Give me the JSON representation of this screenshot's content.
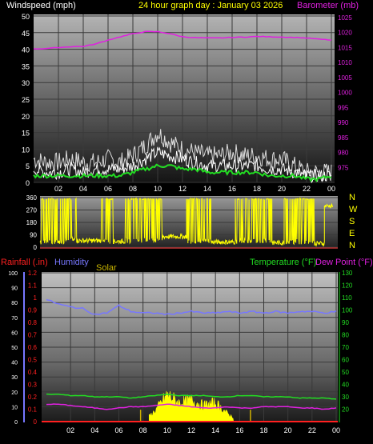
{
  "header": {
    "left_title": "Windspeed (mph)",
    "center_title": "24 hour graph day : January 03 2026",
    "right_title": "Barometer (mb)"
  },
  "colors": {
    "windspeed": "#ffffff",
    "gust": "#d0d0d0",
    "wind_avg": "#22dd22",
    "barometer": "#e020e0",
    "direction": "#ffff00",
    "rainfall": "#ff2020",
    "humidity": "#7777ff",
    "solar": "#ffff00",
    "temperature": "#22dd22",
    "dewpoint": "#e020e0"
  },
  "chart_data": [
    {
      "type": "line",
      "name": "wind-barometer",
      "x_ticks": [
        "02",
        "04",
        "06",
        "08",
        "10",
        "12",
        "14",
        "16",
        "18",
        "20",
        "22",
        "00"
      ],
      "left_axis": {
        "label": "Windspeed (mph)",
        "ylim": [
          0,
          50
        ],
        "ticks": [
          0,
          5,
          10,
          15,
          20,
          25,
          30,
          35,
          40,
          45,
          50
        ]
      },
      "right_axis": {
        "label": "Barometer (mb)",
        "ylim": [
          970,
          1025
        ],
        "ticks": [
          975,
          980,
          985,
          990,
          995,
          1000,
          1005,
          1010,
          1015,
          1020,
          1025
        ]
      },
      "hours": [
        0,
        1,
        2,
        3,
        4,
        5,
        6,
        7,
        8,
        9,
        10,
        11,
        12,
        13,
        14,
        15,
        16,
        17,
        18,
        19,
        20,
        21,
        22,
        23,
        24
      ],
      "gust": [
        7,
        6,
        6,
        7,
        6,
        6,
        7,
        6,
        8,
        11,
        15,
        12,
        10,
        9,
        8,
        8,
        9,
        8,
        8,
        7,
        7,
        5,
        3,
        3,
        3
      ],
      "windspeed": [
        4,
        3,
        3,
        4,
        3,
        4,
        4,
        4,
        5,
        7,
        9,
        8,
        7,
        6,
        5,
        5,
        5,
        5,
        5,
        4,
        4,
        3,
        2,
        2,
        2
      ],
      "wind_avg": [
        2,
        2,
        2,
        2,
        2,
        2,
        2,
        2,
        3,
        4,
        5,
        5,
        4,
        4,
        3,
        3,
        3,
        3,
        3,
        2,
        2,
        2,
        1,
        1,
        2
      ],
      "barometer": [
        1014.5,
        1014.7,
        1015.0,
        1015.3,
        1015.4,
        1016.2,
        1017.5,
        1018.6,
        1019.6,
        1020.3,
        1020.3,
        1019.6,
        1018.6,
        1018.3,
        1018.2,
        1018.2,
        1018.4,
        1018.5,
        1018.7,
        1018.6,
        1018.5,
        1018.4,
        1018.2,
        1017.8,
        1017.5
      ]
    },
    {
      "type": "line",
      "name": "wind-direction",
      "ylim": [
        0,
        360
      ],
      "ticks": [
        0,
        90,
        180,
        270,
        360
      ],
      "right_labels": [
        "N",
        "W",
        "S",
        "E",
        "N"
      ],
      "segments": [
        {
          "from": 0,
          "to": 2,
          "state": "switch",
          "base": 20
        },
        {
          "from": 2,
          "to": 3,
          "state": "switch",
          "base": 40
        },
        {
          "from": 3,
          "to": 5,
          "state": "low",
          "base": 30
        },
        {
          "from": 5,
          "to": 6,
          "state": "switch",
          "base": 20
        },
        {
          "from": 6,
          "to": 7,
          "state": "low",
          "base": 25
        },
        {
          "from": 7,
          "to": 10,
          "state": "switch",
          "base": 30
        },
        {
          "from": 10,
          "to": 12,
          "state": "low",
          "base": 60
        },
        {
          "from": 12,
          "to": 14,
          "state": "switch",
          "base": 25
        },
        {
          "from": 14,
          "to": 16,
          "state": "low",
          "base": 20
        },
        {
          "from": 16,
          "to": 19,
          "state": "switch",
          "base": 25
        },
        {
          "from": 19,
          "to": 20,
          "state": "low",
          "base": 15
        },
        {
          "from": 20,
          "to": 22.5,
          "state": "switch",
          "base": 20
        },
        {
          "from": 22.5,
          "to": 23.3,
          "state": "low",
          "base": 10
        },
        {
          "from": 23.3,
          "to": 24,
          "state": "high",
          "base": 300
        }
      ]
    },
    {
      "type": "line",
      "name": "rain-humidity-temperature",
      "labels": {
        "rainfall": "Rainfall (.in)",
        "humidity": "Humidity",
        "solar": "Solar",
        "temperature": "Temperature (°F)",
        "dewpoint": "Dew Point (°F)"
      },
      "x_ticks": [
        "02",
        "04",
        "06",
        "08",
        "10",
        "12",
        "14",
        "16",
        "18",
        "20",
        "22",
        "00"
      ],
      "humidity_axis": {
        "ylim": [
          0,
          100
        ],
        "ticks": [
          0,
          10,
          20,
          30,
          40,
          50,
          60,
          70,
          80,
          90,
          100
        ]
      },
      "rain_axis": {
        "ylim": [
          0,
          1.2
        ],
        "ticks": [
          0,
          0.1,
          0.2,
          0.3,
          0.4,
          0.5,
          0.6,
          0.7,
          0.8,
          0.9,
          1,
          1.1,
          1.2
        ],
        "tick_labels": [
          "0",
          "0.1",
          "0.2",
          "0.3",
          "0.4",
          "0.5",
          "0.6",
          "0.7",
          "0.8",
          "0.9",
          "1",
          "1.1",
          "1.2"
        ]
      },
      "temp_axis": {
        "ylim": [
          10,
          130
        ],
        "ticks": [
          20,
          30,
          40,
          50,
          60,
          70,
          80,
          90,
          100,
          110,
          120,
          130
        ]
      },
      "hours": [
        0,
        1,
        2,
        3,
        4,
        5,
        6,
        7,
        8,
        9,
        10,
        11,
        12,
        13,
        14,
        15,
        16,
        17,
        18,
        19,
        20,
        21,
        22,
        23,
        24
      ],
      "humidity": [
        82,
        79,
        77,
        76,
        72,
        73,
        78,
        74,
        73,
        73,
        72,
        73,
        74,
        73,
        73,
        74,
        73,
        74,
        73,
        74,
        73,
        74,
        74,
        73,
        74
      ],
      "temperature": [
        32,
        32,
        31,
        31,
        30,
        30,
        30,
        29,
        30,
        31,
        32,
        31,
        31,
        31,
        30,
        30,
        31,
        31,
        30,
        30,
        30,
        29,
        29,
        29,
        28
      ],
      "dewpoint": [
        24,
        24,
        23,
        22,
        21,
        20,
        21,
        22,
        22,
        23,
        24,
        23,
        22,
        21,
        21,
        22,
        21,
        21,
        22,
        22,
        22,
        21,
        21,
        20,
        21
      ],
      "solar": [
        0,
        0,
        0,
        0,
        0,
        0,
        0,
        0,
        0,
        8,
        20,
        14,
        16,
        12,
        14,
        6,
        0,
        0,
        0,
        0,
        0,
        0,
        0,
        0,
        0
      ],
      "rainfall": [
        0,
        0,
        0,
        0,
        0,
        0,
        0,
        0,
        0,
        0,
        0,
        0,
        0,
        0,
        0,
        0,
        0,
        0,
        0,
        0,
        0,
        0,
        0,
        0,
        0
      ]
    }
  ]
}
